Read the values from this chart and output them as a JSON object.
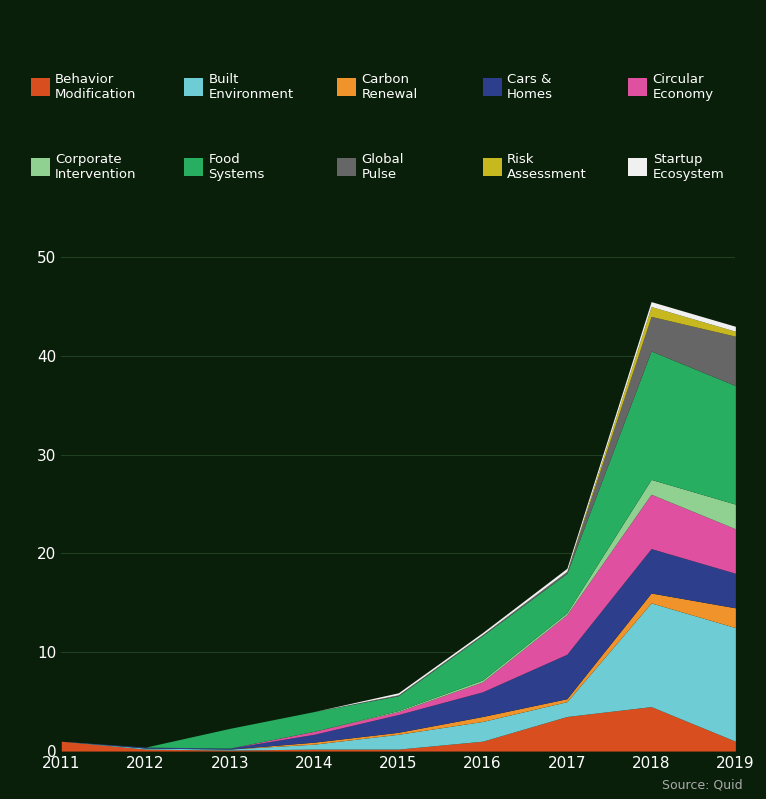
{
  "years": [
    2011,
    2012,
    2013,
    2014,
    2015,
    2016,
    2017,
    2018,
    2019
  ],
  "series_order": [
    "Behavior Modification",
    "Built Environment",
    "Carbon Renewal",
    "Cars & Homes",
    "Circular Economy",
    "Corporate Intervention",
    "Food Systems",
    "Global Pulse",
    "Risk Assessment",
    "Startup Ecosystem"
  ],
  "series": {
    "Behavior Modification": {
      "color": "#d94e1f",
      "values": [
        1.0,
        0.2,
        0.1,
        0.2,
        0.2,
        1.0,
        3.5,
        4.5,
        1.0
      ]
    },
    "Built Environment": {
      "color": "#6ecdd4",
      "values": [
        0.0,
        0.1,
        0.1,
        0.5,
        1.5,
        2.0,
        1.5,
        10.5,
        11.5
      ]
    },
    "Carbon Renewal": {
      "color": "#f0932b",
      "values": [
        0.0,
        0.0,
        0.0,
        0.2,
        0.2,
        0.5,
        0.3,
        1.0,
        2.0
      ]
    },
    "Cars & Homes": {
      "color": "#2c3e8c",
      "values": [
        0.0,
        0.1,
        0.1,
        0.8,
        1.8,
        2.5,
        4.5,
        4.5,
        3.5
      ]
    },
    "Circular Economy": {
      "color": "#e050a0",
      "values": [
        0.0,
        0.0,
        0.0,
        0.3,
        0.3,
        1.0,
        4.0,
        5.5,
        4.5
      ]
    },
    "Corporate Intervention": {
      "color": "#90d090",
      "values": [
        0.0,
        0.0,
        0.0,
        0.0,
        0.1,
        0.2,
        0.2,
        1.5,
        2.5
      ]
    },
    "Food Systems": {
      "color": "#27ae60",
      "values": [
        0.0,
        0.0,
        2.0,
        2.0,
        1.5,
        4.5,
        4.0,
        13.0,
        12.0
      ]
    },
    "Global Pulse": {
      "color": "#666666",
      "values": [
        0.0,
        0.0,
        0.0,
        0.0,
        0.1,
        0.1,
        0.2,
        3.5,
        5.0
      ]
    },
    "Risk Assessment": {
      "color": "#c8b820",
      "values": [
        0.0,
        0.0,
        0.0,
        0.0,
        0.0,
        0.0,
        0.0,
        1.0,
        0.5
      ]
    },
    "Startup Ecosystem": {
      "color": "#f0f0f0",
      "values": [
        0.0,
        0.0,
        0.0,
        0.0,
        0.2,
        0.2,
        0.3,
        0.5,
        0.5
      ]
    }
  },
  "background_color": "#0a1f0a",
  "text_color": "#ffffff",
  "grid_color": "#1e4020",
  "yticks": [
    0,
    10,
    20,
    30,
    40,
    50
  ],
  "ylim": [
    0,
    55
  ],
  "source_text": "Source: Quid",
  "legend_items_row1": [
    [
      "Behavior\nModification",
      "#d94e1f"
    ],
    [
      "Built\nEnvironment",
      "#6ecdd4"
    ],
    [
      "Carbon\nRenewal",
      "#f0932b"
    ],
    [
      "Cars &\nHomes",
      "#2c3e8c"
    ],
    [
      "Circular\nEconomy",
      "#e050a0"
    ]
  ],
  "legend_items_row2": [
    [
      "Corporate\nIntervention",
      "#90d090"
    ],
    [
      "Food\nSystems",
      "#27ae60"
    ],
    [
      "Global\nPulse",
      "#666666"
    ],
    [
      "Risk\nAssessment",
      "#c8b820"
    ],
    [
      "Startup\nEcosystem",
      "#f0f0f0"
    ]
  ]
}
